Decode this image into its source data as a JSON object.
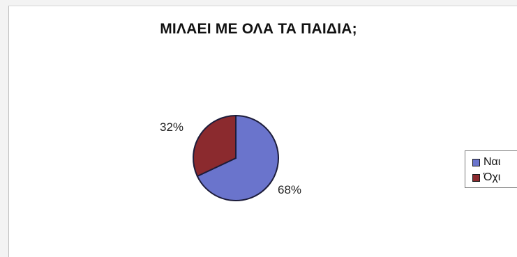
{
  "chart_data": {
    "type": "pie",
    "title": "ΜΙΛΑΕΙ ΜΕ ΟΛΑ ΤΑ ΠΑΙΔΙΑ;",
    "categories": [
      "Ναι",
      "Όχι"
    ],
    "values": [
      68,
      32
    ],
    "data_labels": [
      "68%",
      "32%"
    ],
    "colors": [
      "#6a74cc",
      "#8b2a2e"
    ],
    "legend": {
      "position": "right",
      "entries": [
        "Ναι",
        "Όχι"
      ]
    }
  }
}
